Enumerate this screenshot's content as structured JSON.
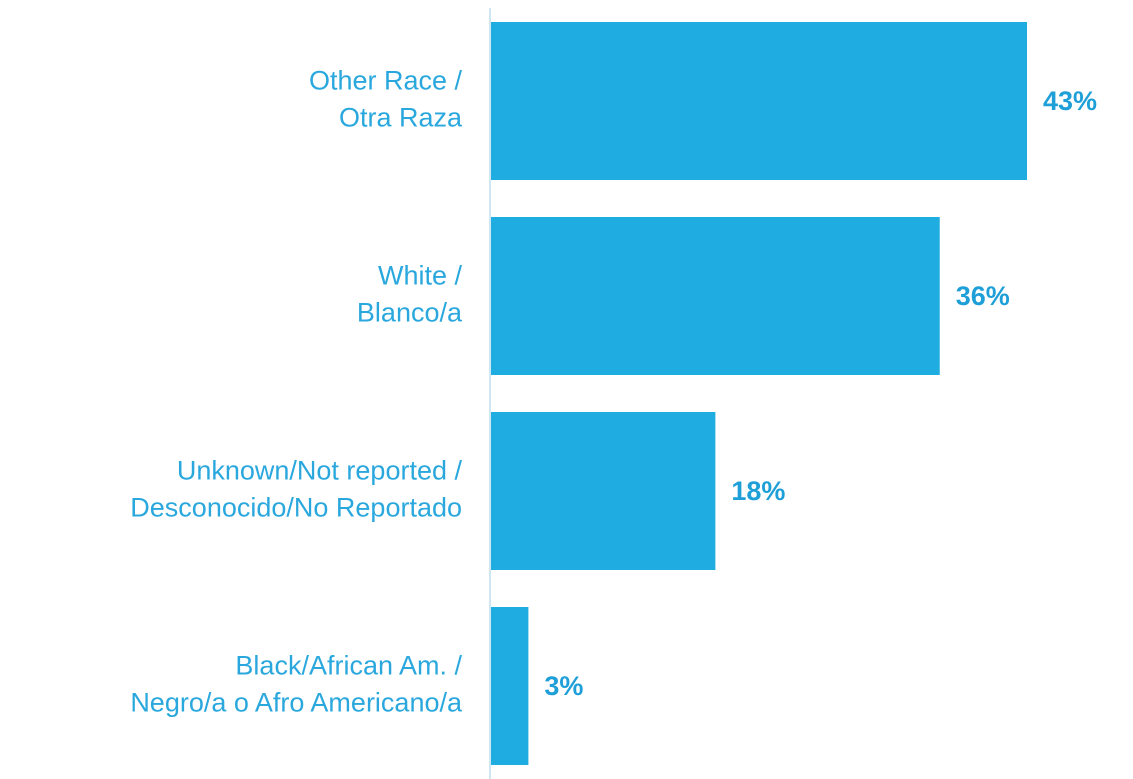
{
  "chart_data": {
    "type": "bar",
    "orientation": "horizontal",
    "categories": [
      [
        "Other Race /",
        "Otra Raza"
      ],
      [
        "White /",
        "Blanco/a"
      ],
      [
        "Unknown/Not reported /",
        "Desconocido/No Reportado"
      ],
      [
        "Black/African Am. /",
        "Negro/a o Afro Americano/a"
      ]
    ],
    "values": [
      43,
      36,
      18,
      3
    ],
    "value_labels": [
      "43%",
      "36%",
      "18%",
      "3%"
    ],
    "color": "#1fade1"
  }
}
